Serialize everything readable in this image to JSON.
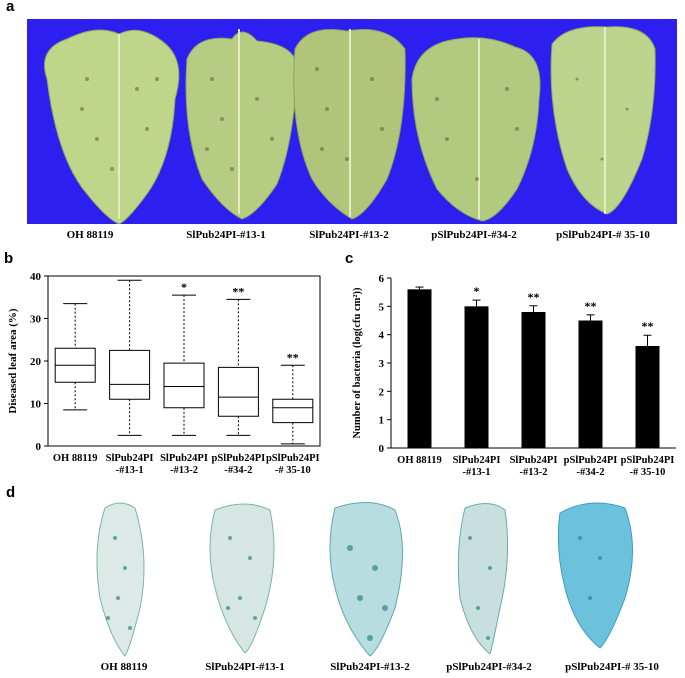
{
  "panels": {
    "a": {
      "letter": "a",
      "labels": [
        "OH 88119",
        "SlPub24PI-#13-1",
        "SlPub24PI-#13-2",
        "pSlPub24PI-#34-2",
        "pSlPub24PI-# 35-10"
      ]
    },
    "b": {
      "letter": "b"
    },
    "c": {
      "letter": "c"
    },
    "d": {
      "letter": "d",
      "labels": [
        "OH 88119",
        "SlPub24PI-#13-1",
        "SlPub24PI-#13-2",
        "pSlPub24PI-#34-2",
        "pSlPub24PI-# 35-10"
      ]
    }
  },
  "colors": {
    "background_blue": "#2c1ff0",
    "leaf_green": "#b9cf86",
    "lesion": "#6a5a3a",
    "stain_blue": "#2a9a9a"
  },
  "chart_data": [
    {
      "type": "box",
      "ylabel": "Diseased leaf area (%)",
      "ylim": [
        0,
        40
      ],
      "yticks": [
        "0",
        "10",
        "20",
        "30",
        "40"
      ],
      "categories": [
        [
          "OH 88119"
        ],
        [
          "SlPub24PI",
          "-#13-1"
        ],
        [
          "SlPub24PI",
          "-#13-2"
        ],
        [
          "pSlPub24PI",
          "-#34-2"
        ],
        [
          "pSlPub24PI",
          "-# 35-10"
        ]
      ],
      "boxes": [
        {
          "min": 8.5,
          "q1": 15,
          "median": 19,
          "q3": 23,
          "max": 33.5,
          "sig": ""
        },
        {
          "min": 2.5,
          "q1": 11,
          "median": 14.5,
          "q3": 22.5,
          "max": 39,
          "sig": ""
        },
        {
          "min": 2.5,
          "q1": 9,
          "median": 14,
          "q3": 19.5,
          "max": 35.5,
          "sig": "*"
        },
        {
          "min": 2.5,
          "q1": 7,
          "median": 11.5,
          "q3": 18.5,
          "max": 34.5,
          "sig": "**"
        },
        {
          "min": 0.5,
          "q1": 5.5,
          "median": 9,
          "q3": 11,
          "max": 19,
          "sig": "**"
        }
      ]
    },
    {
      "type": "bar",
      "ylabel": "Number of bacteria (log(cfu cm²))",
      "ylim": [
        0,
        6
      ],
      "yticks": [
        "0",
        "1",
        "2",
        "3",
        "4",
        "5",
        "6"
      ],
      "categories": [
        [
          "OH 88119"
        ],
        [
          "SlPub24PI",
          "-#13-1"
        ],
        [
          "SlPub24PI",
          "-#13-2"
        ],
        [
          "pSlPub24PI",
          "-#34-2"
        ],
        [
          "pSlPub24PI",
          "-# 35-10"
        ]
      ],
      "values": [
        5.6,
        5.0,
        4.8,
        4.5,
        3.6
      ],
      "errors": [
        0.08,
        0.22,
        0.22,
        0.2,
        0.38
      ],
      "sig": [
        "",
        "*",
        "**",
        "**",
        "**"
      ]
    }
  ]
}
